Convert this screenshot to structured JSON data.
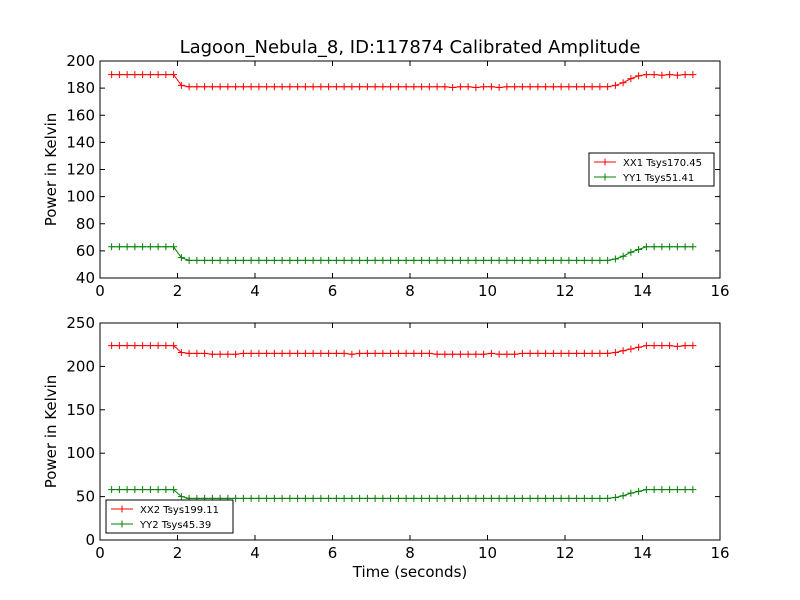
{
  "chart_data": [
    {
      "type": "line",
      "title": "Lagoon_Nebula_8, ID:117874 Calibrated Amplitude",
      "xlabel": "",
      "ylabel": "Power in Kelvin",
      "xlim": [
        0,
        16
      ],
      "ylim": [
        40,
        200
      ],
      "xticks": [
        0,
        2,
        4,
        6,
        8,
        10,
        12,
        14,
        16
      ],
      "yticks": [
        40,
        60,
        80,
        100,
        120,
        140,
        160,
        180,
        200
      ],
      "legend_position": "center-right",
      "series": [
        {
          "name": "XX1 Tsys170.45",
          "color": "#ff0000",
          "x": [
            0.3,
            0.5,
            0.7,
            0.9,
            1.1,
            1.3,
            1.5,
            1.7,
            1.9,
            2.1,
            2.3,
            2.5,
            2.7,
            2.9,
            3.1,
            3.3,
            3.5,
            3.7,
            3.9,
            4.1,
            4.3,
            4.5,
            4.7,
            4.9,
            5.1,
            5.3,
            5.5,
            5.7,
            5.9,
            6.1,
            6.3,
            6.5,
            6.7,
            6.9,
            7.1,
            7.3,
            7.5,
            7.7,
            7.9,
            8.1,
            8.3,
            8.5,
            8.7,
            8.9,
            9.1,
            9.3,
            9.5,
            9.7,
            9.9,
            10.1,
            10.3,
            10.5,
            10.7,
            10.9,
            11.1,
            11.3,
            11.5,
            11.7,
            11.9,
            12.1,
            12.3,
            12.5,
            12.7,
            12.9,
            13.1,
            13.3,
            13.5,
            13.7,
            13.9,
            14.1,
            14.3,
            14.5,
            14.7,
            14.9,
            15.1,
            15.3
          ],
          "y": [
            190,
            190,
            190,
            190,
            190,
            190,
            190,
            190,
            190,
            182,
            181,
            181,
            181,
            181,
            181,
            181,
            181,
            181,
            181,
            181,
            181,
            181,
            181,
            181,
            181,
            181,
            181,
            181,
            181,
            181,
            181,
            181,
            181,
            181,
            181,
            181,
            181,
            181,
            181,
            181,
            181,
            181,
            181,
            181,
            180.5,
            181,
            181,
            180.5,
            181,
            181,
            180.5,
            181,
            181,
            181,
            181,
            181,
            181,
            181,
            181,
            181,
            181,
            181,
            181,
            181,
            181,
            182,
            184,
            187,
            189,
            190,
            190,
            189.5,
            190,
            189.5,
            190,
            190
          ]
        },
        {
          "name": "YY1 Tsys51.41",
          "color": "#008000",
          "x": [
            0.3,
            0.5,
            0.7,
            0.9,
            1.1,
            1.3,
            1.5,
            1.7,
            1.9,
            2.1,
            2.3,
            2.5,
            2.7,
            2.9,
            3.1,
            3.3,
            3.5,
            3.7,
            3.9,
            4.1,
            4.3,
            4.5,
            4.7,
            4.9,
            5.1,
            5.3,
            5.5,
            5.7,
            5.9,
            6.1,
            6.3,
            6.5,
            6.7,
            6.9,
            7.1,
            7.3,
            7.5,
            7.7,
            7.9,
            8.1,
            8.3,
            8.5,
            8.7,
            8.9,
            9.1,
            9.3,
            9.5,
            9.7,
            9.9,
            10.1,
            10.3,
            10.5,
            10.7,
            10.9,
            11.1,
            11.3,
            11.5,
            11.7,
            11.9,
            12.1,
            12.3,
            12.5,
            12.7,
            12.9,
            13.1,
            13.3,
            13.5,
            13.7,
            13.9,
            14.1,
            14.3,
            14.5,
            14.7,
            14.9,
            15.1,
            15.3
          ],
          "y": [
            63,
            63,
            63,
            63,
            63,
            63,
            63,
            63,
            63,
            55,
            53,
            53,
            53,
            53,
            53,
            53,
            53,
            53,
            53,
            53,
            53,
            53,
            53,
            53,
            53,
            53,
            53,
            53,
            53,
            53,
            53,
            53,
            53,
            53,
            53,
            53,
            53,
            53,
            53,
            53,
            53,
            53,
            53,
            53,
            53,
            53,
            53,
            53,
            53,
            53,
            53,
            53,
            53,
            53,
            53,
            53,
            53,
            53,
            53,
            53,
            53,
            53,
            53,
            53,
            53,
            54,
            56,
            59,
            61,
            63,
            63,
            63,
            63,
            63,
            63,
            63
          ]
        }
      ]
    },
    {
      "type": "line",
      "title": "",
      "xlabel": "Time (seconds)",
      "ylabel": "Power in Kelvin",
      "xlim": [
        0,
        16
      ],
      "ylim": [
        0,
        250
      ],
      "xticks": [
        0,
        2,
        4,
        6,
        8,
        10,
        12,
        14,
        16
      ],
      "yticks": [
        0,
        50,
        100,
        150,
        200,
        250
      ],
      "legend_position": "lower-left",
      "series": [
        {
          "name": "XX2 Tsys199.11",
          "color": "#ff0000",
          "x": [
            0.3,
            0.5,
            0.7,
            0.9,
            1.1,
            1.3,
            1.5,
            1.7,
            1.9,
            2.1,
            2.3,
            2.5,
            2.7,
            2.9,
            3.1,
            3.3,
            3.5,
            3.7,
            3.9,
            4.1,
            4.3,
            4.5,
            4.7,
            4.9,
            5.1,
            5.3,
            5.5,
            5.7,
            5.9,
            6.1,
            6.3,
            6.5,
            6.7,
            6.9,
            7.1,
            7.3,
            7.5,
            7.7,
            7.9,
            8.1,
            8.3,
            8.5,
            8.7,
            8.9,
            9.1,
            9.3,
            9.5,
            9.7,
            9.9,
            10.1,
            10.3,
            10.5,
            10.7,
            10.9,
            11.1,
            11.3,
            11.5,
            11.7,
            11.9,
            12.1,
            12.3,
            12.5,
            12.7,
            12.9,
            13.1,
            13.3,
            13.5,
            13.7,
            13.9,
            14.1,
            14.3,
            14.5,
            14.7,
            14.9,
            15.1,
            15.3
          ],
          "y": [
            224,
            224,
            224,
            224,
            224,
            224,
            224,
            224,
            224,
            216,
            215,
            215,
            215,
            214,
            214,
            214,
            214,
            215,
            215,
            215,
            215,
            215,
            215,
            215,
            215,
            215,
            215,
            215,
            215,
            215,
            215,
            214,
            215,
            215,
            215,
            215,
            215,
            215,
            215,
            215,
            215,
            215,
            214,
            214,
            214,
            214,
            214,
            214,
            214,
            215,
            214,
            214,
            214,
            215,
            215,
            215,
            215,
            215,
            215,
            215,
            215,
            215,
            215,
            215,
            215,
            216,
            218,
            220,
            222,
            224,
            224,
            224,
            224,
            223,
            224,
            224
          ]
        },
        {
          "name": "YY2 Tsys45.39",
          "color": "#008000",
          "x": [
            0.3,
            0.5,
            0.7,
            0.9,
            1.1,
            1.3,
            1.5,
            1.7,
            1.9,
            2.1,
            2.3,
            2.5,
            2.7,
            2.9,
            3.1,
            3.3,
            3.5,
            3.7,
            3.9,
            4.1,
            4.3,
            4.5,
            4.7,
            4.9,
            5.1,
            5.3,
            5.5,
            5.7,
            5.9,
            6.1,
            6.3,
            6.5,
            6.7,
            6.9,
            7.1,
            7.3,
            7.5,
            7.7,
            7.9,
            8.1,
            8.3,
            8.5,
            8.7,
            8.9,
            9.1,
            9.3,
            9.5,
            9.7,
            9.9,
            10.1,
            10.3,
            10.5,
            10.7,
            10.9,
            11.1,
            11.3,
            11.5,
            11.7,
            11.9,
            12.1,
            12.3,
            12.5,
            12.7,
            12.9,
            13.1,
            13.3,
            13.5,
            13.7,
            13.9,
            14.1,
            14.3,
            14.5,
            14.7,
            14.9,
            15.1,
            15.3
          ],
          "y": [
            58,
            58,
            58,
            58,
            58,
            58,
            58,
            58,
            58,
            50,
            48,
            48,
            48,
            48,
            48,
            48,
            48,
            48,
            48,
            48,
            48,
            48,
            48,
            48,
            48,
            48,
            48,
            48,
            48,
            48,
            48,
            48,
            48,
            48,
            48,
            48,
            48,
            48,
            48,
            48,
            48,
            48,
            48,
            48,
            48,
            48,
            48,
            48,
            48,
            48,
            48,
            48,
            48,
            48,
            48,
            48,
            48,
            48,
            48,
            48,
            48,
            48,
            48,
            48,
            48,
            49,
            51,
            54,
            56,
            58,
            58,
            58,
            58,
            58,
            58,
            58
          ]
        }
      ]
    }
  ]
}
